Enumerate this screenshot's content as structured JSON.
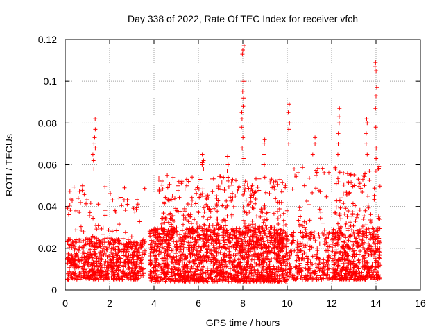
{
  "chart_data": {
    "type": "scatter",
    "title": "Day 338 of 2022, Rate Of TEC Index for receiver vfch",
    "xlabel": "GPS time / hours",
    "ylabel": "ROTI / TECUs",
    "xlim": [
      0,
      16
    ],
    "ylim": [
      0,
      0.12
    ],
    "xticks": [
      0,
      2,
      4,
      6,
      8,
      10,
      12,
      14,
      16
    ],
    "yticks": [
      0,
      0.02,
      0.04,
      0.06,
      0.08,
      0.1,
      0.12
    ],
    "xtick_labels": [
      "0",
      "2",
      "4",
      "6",
      "8",
      "10",
      "12",
      "14",
      "16"
    ],
    "ytick_labels": [
      "0",
      "0.02",
      "0.04",
      "0.06",
      "0.08",
      "0.1",
      "0.12"
    ],
    "grid": true,
    "marker": "plus",
    "series": [
      {
        "name": "ROTI",
        "color": "#ff0000",
        "clusters": [
          {
            "x_range": [
              0.1,
              3.6
            ],
            "y_range": [
              0.005,
              0.025
            ],
            "count": 700
          },
          {
            "x_range": [
              0.1,
              3.6
            ],
            "y_range": [
              0.02,
              0.05
            ],
            "count": 90
          },
          {
            "x_range": [
              3.8,
              10.0
            ],
            "y_range": [
              0.004,
              0.03
            ],
            "count": 1500
          },
          {
            "x_range": [
              4.2,
              10.0
            ],
            "y_range": [
              0.02,
              0.055
            ],
            "count": 450
          },
          {
            "x_range": [
              10.0,
              11.9
            ],
            "y_range": [
              0.005,
              0.028
            ],
            "count": 250
          },
          {
            "x_range": [
              10.2,
              11.9
            ],
            "y_range": [
              0.025,
              0.06
            ],
            "count": 45
          },
          {
            "x_range": [
              12.0,
              14.2
            ],
            "y_range": [
              0.005,
              0.03
            ],
            "count": 480
          },
          {
            "x_range": [
              12.1,
              14.2
            ],
            "y_range": [
              0.025,
              0.06
            ],
            "count": 110
          }
        ],
        "spikes": [
          {
            "x": 1.3,
            "y_values": [
              0.058,
              0.062,
              0.065,
              0.068,
              0.07,
              0.073,
              0.077,
              0.082
            ]
          },
          {
            "x": 6.2,
            "y_values": [
              0.058,
              0.06,
              0.061,
              0.062,
              0.065
            ]
          },
          {
            "x": 7.3,
            "y_values": [
              0.054,
              0.057,
              0.06,
              0.064
            ]
          },
          {
            "x": 8.0,
            "y_values": [
              0.063,
              0.068,
              0.073,
              0.078,
              0.082,
              0.085,
              0.088,
              0.092,
              0.095,
              0.1,
              0.113,
              0.115,
              0.117
            ]
          },
          {
            "x": 9.0,
            "y_values": [
              0.06,
              0.065,
              0.07,
              0.072
            ]
          },
          {
            "x": 10.1,
            "y_values": [
              0.07,
              0.077,
              0.08,
              0.085,
              0.089
            ]
          },
          {
            "x": 11.2,
            "y_values": [
              0.065,
              0.07,
              0.073
            ]
          },
          {
            "x": 12.3,
            "y_values": [
              0.065,
              0.07,
              0.075,
              0.08,
              0.083,
              0.087
            ]
          },
          {
            "x": 13.6,
            "y_values": [
              0.065,
              0.07,
              0.075,
              0.08,
              0.082
            ]
          },
          {
            "x": 14.0,
            "y_values": [
              0.063,
              0.068,
              0.078,
              0.087,
              0.093,
              0.097,
              0.105,
              0.107,
              0.109
            ]
          }
        ]
      }
    ]
  }
}
